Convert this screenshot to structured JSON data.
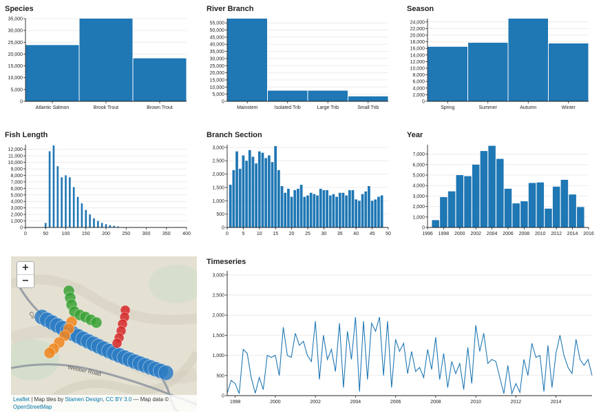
{
  "chart_data": [
    {
      "id": "species",
      "type": "bar",
      "title": "Species",
      "categories": [
        "Atlantic Salmon",
        "Brook Trout",
        "Brown Trout"
      ],
      "values": [
        23800,
        35000,
        18200
      ],
      "ylim": [
        0,
        35000
      ],
      "yticks": [
        "0",
        "5,000",
        "10,000",
        "15,000",
        "20,000",
        "25,000",
        "30,000",
        "35,000"
      ],
      "grid": true
    },
    {
      "id": "river-branch",
      "type": "bar",
      "title": "River Branch",
      "categories": [
        "Mainstem",
        "Isolated Trib",
        "Large Trib",
        "Small Trib"
      ],
      "values": [
        58000,
        7500,
        7500,
        3500
      ],
      "ylim": [
        0,
        58000
      ],
      "yticks": [
        "0",
        "5,000",
        "10,000",
        "15,000",
        "20,000",
        "25,000",
        "30,000",
        "35,000",
        "40,000",
        "45,000",
        "50,000",
        "55,000"
      ],
      "grid": true
    },
    {
      "id": "season",
      "type": "bar",
      "title": "Season",
      "categories": [
        "Spring",
        "Summer",
        "Autumn",
        "Winter"
      ],
      "values": [
        16500,
        17700,
        25000,
        17500
      ],
      "ylim": [
        0,
        25000
      ],
      "yticks": [
        "0",
        "2,000",
        "4,000",
        "6,000",
        "8,000",
        "10,000",
        "12,000",
        "14,000",
        "16,000",
        "18,000",
        "20,000",
        "22,000",
        "24,000"
      ],
      "grid": true
    },
    {
      "id": "fish-length",
      "type": "bar",
      "title": "Fish Length",
      "x": [
        50,
        60,
        70,
        80,
        90,
        100,
        110,
        120,
        130,
        140,
        150,
        160,
        170,
        180,
        190,
        200,
        210,
        220,
        230,
        240
      ],
      "values": [
        700,
        11700,
        12600,
        9400,
        7700,
        8000,
        7700,
        6200,
        4700,
        3700,
        2700,
        2000,
        1400,
        1000,
        700,
        500,
        350,
        250,
        150,
        60
      ],
      "bar_width": 4.5,
      "xlim": [
        0,
        400
      ],
      "xticks": [
        "0",
        "50",
        "100",
        "150",
        "200",
        "250",
        "300",
        "350",
        "400"
      ],
      "ylim": [
        0,
        12700
      ],
      "yticks": [
        "0",
        "1,000",
        "2,000",
        "3,000",
        "4,000",
        "5,000",
        "6,000",
        "7,000",
        "8,000",
        "9,000",
        "10,000",
        "11,000",
        "12,000"
      ],
      "grid": true
    },
    {
      "id": "branch-section",
      "type": "bar",
      "title": "Branch Section",
      "x": [
        1,
        2,
        3,
        4,
        5,
        6,
        7,
        8,
        9,
        10,
        11,
        12,
        13,
        14,
        15,
        16,
        17,
        18,
        19,
        20,
        21,
        22,
        23,
        24,
        25,
        26,
        27,
        28,
        29,
        30,
        31,
        32,
        33,
        34,
        35,
        36,
        37,
        38,
        39,
        40,
        41,
        42,
        43,
        44,
        45,
        46,
        47,
        48
      ],
      "values": [
        1600,
        2150,
        2850,
        2200,
        2700,
        2500,
        2900,
        2650,
        2400,
        2850,
        2800,
        2600,
        2700,
        2450,
        3050,
        2150,
        1550,
        1300,
        1450,
        1150,
        1400,
        1450,
        1600,
        1150,
        1200,
        1300,
        1250,
        1200,
        1450,
        1400,
        1400,
        1200,
        1250,
        1150,
        1300,
        1300,
        1200,
        1400,
        1400,
        1050,
        1000,
        1250,
        1350,
        1550,
        1000,
        1050,
        1150,
        1200
      ],
      "bar_width": 0.8,
      "xlim": [
        0,
        50
      ],
      "xticks": [
        "0",
        "5",
        "10",
        "15",
        "20",
        "25",
        "30",
        "35",
        "40",
        "45",
        "50"
      ],
      "ylim": [
        0,
        3100
      ],
      "yticks": [
        "0",
        "500",
        "1,000",
        "1,500",
        "2,000",
        "2,500",
        "3,000"
      ],
      "grid": true
    },
    {
      "id": "year",
      "type": "bar",
      "title": "Year",
      "x": [
        1997,
        1998,
        1999,
        2000,
        2001,
        2002,
        2003,
        2004,
        2005,
        2006,
        2007,
        2008,
        2009,
        2010,
        2011,
        2012,
        2013,
        2014,
        2015
      ],
      "values": [
        700,
        2900,
        3450,
        5000,
        4900,
        6000,
        7300,
        7800,
        6550,
        3700,
        2300,
        2500,
        4250,
        4300,
        1800,
        3900,
        4550,
        3150,
        1950
      ],
      "bar_width": 0.9,
      "xlim": [
        1996,
        2016
      ],
      "xticks": [
        "1996",
        "1998",
        "2000",
        "2002",
        "2004",
        "2006",
        "2008",
        "2010",
        "2012",
        "2014",
        "2016"
      ],
      "ylim": [
        0,
        7900
      ],
      "yticks": [
        "0",
        "1,000",
        "2,000",
        "3,000",
        "4,000",
        "5,000",
        "6,000",
        "7,000"
      ],
      "grid": true
    },
    {
      "id": "timeseries",
      "type": "line",
      "title": "Timeseries",
      "x": [
        1997.6,
        1997.8,
        1998.0,
        1998.2,
        1998.4,
        1998.6,
        1998.8,
        1999.0,
        1999.2,
        1999.4,
        1999.6,
        1999.8,
        2000.0,
        2000.2,
        2000.4,
        2000.6,
        2000.8,
        2001.0,
        2001.2,
        2001.4,
        2001.6,
        2001.8,
        2002.0,
        2002.2,
        2002.4,
        2002.6,
        2002.8,
        2003.0,
        2003.2,
        2003.4,
        2003.6,
        2003.8,
        2004.0,
        2004.2,
        2004.4,
        2004.6,
        2004.8,
        2005.0,
        2005.2,
        2005.4,
        2005.6,
        2005.8,
        2006.0,
        2006.2,
        2006.4,
        2006.6,
        2006.8,
        2007.0,
        2007.2,
        2007.4,
        2007.6,
        2007.8,
        2008.0,
        2008.2,
        2008.4,
        2008.6,
        2008.8,
        2009.0,
        2009.2,
        2009.4,
        2009.6,
        2009.8,
        2010.0,
        2010.2,
        2010.4,
        2010.6,
        2010.8,
        2011.0,
        2011.2,
        2011.4,
        2011.6,
        2011.8,
        2012.0,
        2012.2,
        2012.4,
        2012.6,
        2012.8,
        2013.0,
        2013.2,
        2013.4,
        2013.6,
        2013.8,
        2014.0,
        2014.2,
        2014.4,
        2014.6,
        2014.8,
        2015.0,
        2015.2,
        2015.4,
        2015.6,
        2015.8
      ],
      "values": [
        60,
        380,
        300,
        50,
        1150,
        1050,
        450,
        60,
        450,
        150,
        1000,
        950,
        1000,
        500,
        1700,
        1000,
        950,
        1550,
        1250,
        1350,
        1000,
        850,
        1850,
        400,
        1500,
        900,
        1150,
        600,
        1800,
        200,
        1600,
        900,
        1950,
        100,
        1850,
        400,
        1800,
        1600,
        1950,
        500,
        1850,
        200,
        1400,
        1100,
        1300,
        550,
        1100,
        600,
        700,
        450,
        1150,
        650,
        1450,
        400,
        1050,
        200,
        850,
        550,
        800,
        150,
        1200,
        300,
        1750,
        1100,
        1550,
        800,
        900,
        850,
        450,
        50,
        750,
        50,
        300,
        80,
        900,
        500,
        1300,
        950,
        1000,
        100,
        1250,
        200,
        1050,
        1500,
        1000,
        700,
        550,
        1400,
        900,
        750,
        900,
        500
      ],
      "xlim": [
        1997.6,
        2015.8
      ],
      "xticks": [
        "1998",
        "2000",
        "2002",
        "2004",
        "2006",
        "2008",
        "2010",
        "2012",
        "2014"
      ],
      "xtick_values": [
        1998,
        2000,
        2002,
        2004,
        2006,
        2008,
        2010,
        2012,
        2014
      ],
      "ylim": [
        0,
        3100
      ],
      "yticks": [
        "0",
        "500",
        "1,000",
        "1,500",
        "2,000",
        "2,500",
        "3,000"
      ],
      "grid": true
    }
  ],
  "colors": {
    "bar": "#1f77b4",
    "grid": "#ececec",
    "axis": "#222222",
    "marker_blue": "#2b7bc3",
    "marker_green": "#39a135",
    "marker_orange": "#f0851e",
    "marker_red": "#d62728"
  },
  "map": {
    "zoom_in_label": "+",
    "zoom_out_label": "−",
    "road_label_1": "Co",
    "road_label_2": "Webber Road",
    "attribution": {
      "leaflet": "Leaflet",
      "sep": " | Map tiles by ",
      "stamen": "Stamen Design",
      "comma": ", ",
      "cc": "CC BY 3.0",
      "mid": " — Map data © ",
      "osm": "OpenStreetMap"
    }
  }
}
